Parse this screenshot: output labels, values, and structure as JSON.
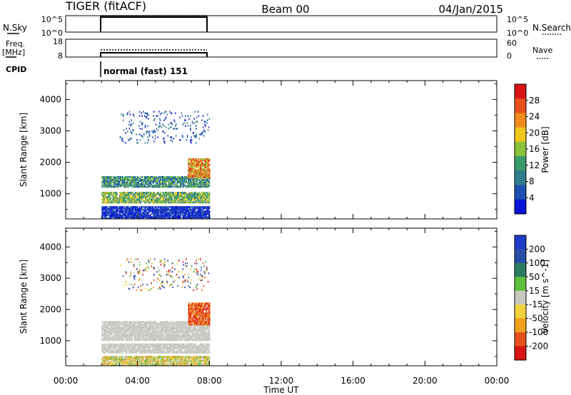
{
  "header": {
    "station": "TIGER (fitACF)",
    "beam": "Beam 00",
    "date": "04/Jan/2015"
  },
  "nsky_panel": {
    "left_label": "N.Sky",
    "right_label": "N.Search",
    "left_ticks": [
      "10^5",
      "10^0"
    ],
    "right_ticks": [
      "10^5",
      "10^0"
    ]
  },
  "freq_panel": {
    "left_label_1": "Freq.",
    "left_label_2": "[MHz]",
    "right_label": "Nave",
    "left_ticks": [
      "18",
      "8"
    ],
    "right_ticks": [
      "60",
      "0"
    ]
  },
  "cpid": {
    "label": "CPID",
    "mode": "normal (fast) 151"
  },
  "x_axis": {
    "label": "Time UT",
    "ticks": [
      "00:00",
      "04:00",
      "08:00",
      "12:00",
      "16:00",
      "20:00",
      "00:00"
    ],
    "range_hours": [
      0,
      24
    ]
  },
  "colors": {
    "power_scale": [
      "#0a14d6",
      "#1d4fb0",
      "#2e7d8a",
      "#3a9a6a",
      "#88c23a",
      "#f0c81e",
      "#f08c1e",
      "#e8501e",
      "#d81414"
    ],
    "velocity_scale": [
      "#1e3cc8",
      "#2850a8",
      "#2d7a62",
      "#5fc03c",
      "#c8c8c0",
      "#f0d23c",
      "#f0a01e",
      "#e6501e",
      "#d81414"
    ]
  },
  "chart_data": [
    {
      "type": "heatmap",
      "title": "",
      "xlabel": "Time UT",
      "ylabel": "Slant Range [km]",
      "x_range_hours": [
        0,
        24
      ],
      "ylim": [
        200,
        4600
      ],
      "y_ticks": [
        1000,
        2000,
        3000,
        4000
      ],
      "colorbar": {
        "label": "Power [dB]",
        "ticks": [
          "4",
          "8",
          "12",
          "16",
          "20",
          "24",
          "28"
        ],
        "range": [
          0,
          32
        ]
      },
      "observation_window_hours": [
        2.0,
        8.0
      ],
      "scatter_regions": [
        {
          "t_start": 2.0,
          "t_end": 8.0,
          "range_low": 1200,
          "range_high": 1550,
          "level": "mid"
        },
        {
          "t_start": 2.0,
          "t_end": 8.0,
          "range_low": 700,
          "range_high": 1050,
          "level": "mid-high"
        },
        {
          "t_start": 2.0,
          "t_end": 8.0,
          "range_low": 200,
          "range_high": 600,
          "level": "low"
        },
        {
          "t_start": 3.0,
          "t_end": 8.0,
          "range_low": 2600,
          "range_high": 3600,
          "level": "low-sparse"
        },
        {
          "t_start": 6.8,
          "t_end": 8.0,
          "range_low": 1500,
          "range_high": 2100,
          "level": "high"
        }
      ]
    },
    {
      "type": "heatmap",
      "title": "",
      "xlabel": "Time UT",
      "ylabel": "Slant Range [km]",
      "x_range_hours": [
        0,
        24
      ],
      "ylim": [
        200,
        4600
      ],
      "y_ticks": [
        1000,
        2000,
        3000,
        4000
      ],
      "colorbar": {
        "label": "Velocity [m s^-1]",
        "ticks": [
          "200",
          "100",
          "50",
          "15",
          "-15",
          "-50",
          "-100",
          "-200"
        ],
        "range": [
          -250,
          250
        ]
      },
      "observation_window_hours": [
        2.0,
        8.0
      ],
      "scatter_regions": [
        {
          "t_start": 2.0,
          "t_end": 8.0,
          "range_low": 1000,
          "range_high": 1600,
          "level": "ground"
        },
        {
          "t_start": 2.0,
          "t_end": 8.0,
          "range_low": 600,
          "range_high": 900,
          "level": "ground"
        },
        {
          "t_start": 2.0,
          "t_end": 8.0,
          "range_low": 200,
          "range_high": 500,
          "level": "mixed"
        },
        {
          "t_start": 3.0,
          "t_end": 8.0,
          "range_low": 2600,
          "range_high": 3600,
          "level": "mixed-sparse"
        },
        {
          "t_start": 6.8,
          "t_end": 8.0,
          "range_low": 1500,
          "range_high": 2200,
          "level": "negative"
        }
      ]
    }
  ]
}
